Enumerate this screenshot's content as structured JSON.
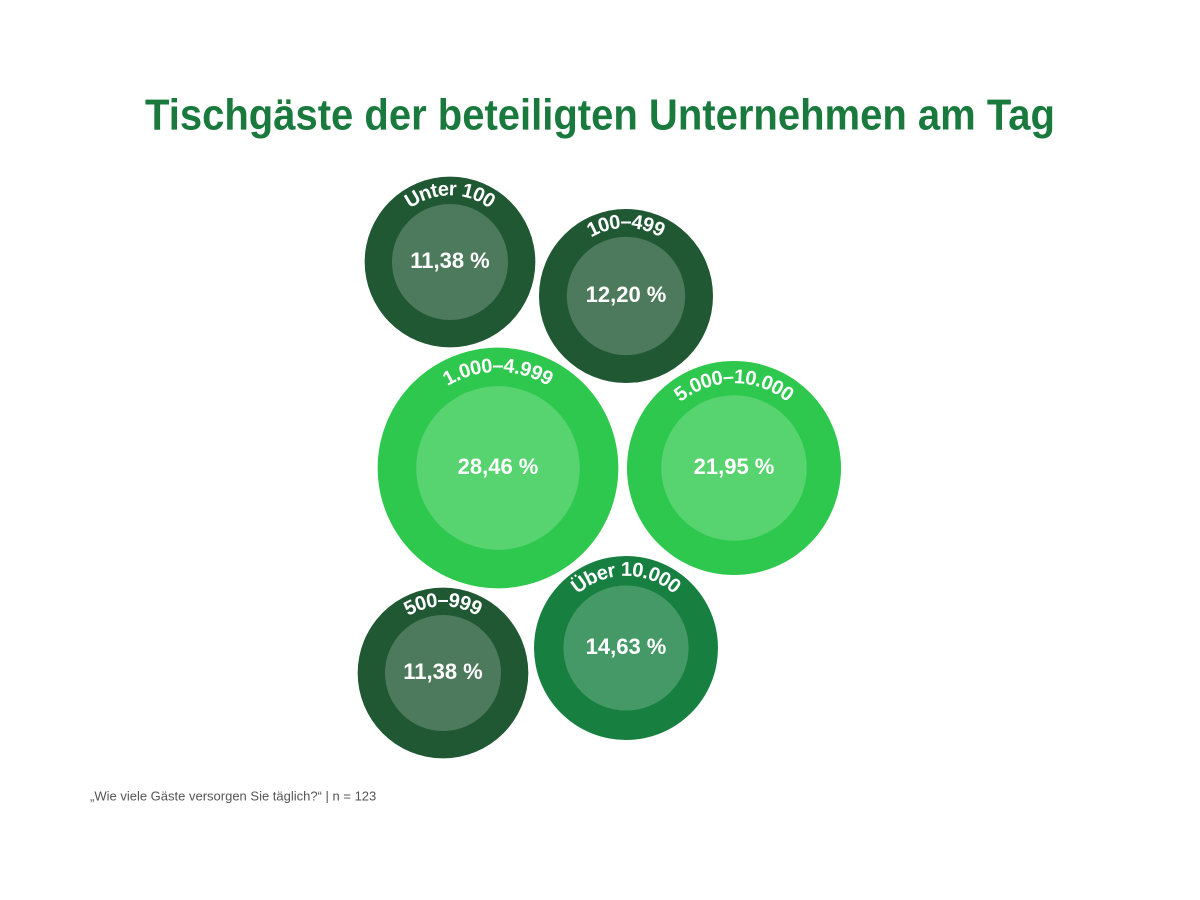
{
  "chart_data": {
    "type": "bubble",
    "title": "Tischgäste der beteiligten Unternehmen am Tag",
    "categories": [
      "Unter 100",
      "100–499",
      "1.000–4.999",
      "5.000–10.000",
      "500–999",
      "Über 10.000"
    ],
    "values": [
      11.38,
      12.2,
      28.46,
      21.95,
      11.38,
      14.63
    ],
    "value_labels": [
      "11,38 %",
      "12,20 %",
      "28,46 %",
      "21,95 %",
      "11,38 %",
      "14,63 %"
    ],
    "colors": [
      "#215834",
      "#215834",
      "#2dc84d",
      "#2dc84d",
      "#215834",
      "#178041"
    ],
    "footnote": "„Wie viele Gäste versorgen Sie täglich?“ | n = 123"
  }
}
